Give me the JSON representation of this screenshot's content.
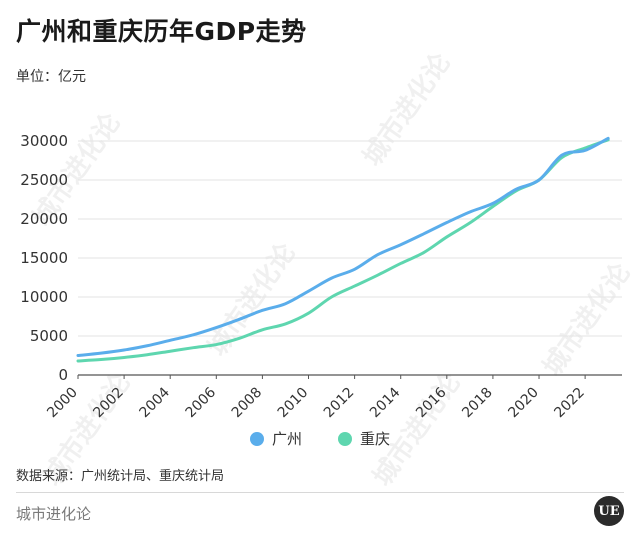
{
  "title": "广州和重庆历年GDP走势",
  "unit_label": "单位：亿元",
  "source": "数据来源：广州统计局、重庆统计局",
  "brand": "城市进化论",
  "logo_text": "UE",
  "watermark_text": "城市进化论",
  "colors": {
    "guangzhou": "#5AADEB",
    "chongqing": "#5ED6AF",
    "grid": "#e3e3e3",
    "axis": "#555555"
  },
  "chart_data": {
    "type": "line",
    "title": "广州和重庆历年GDP走势",
    "ylabel": "单位：亿元",
    "xlabel": "",
    "ylim": [
      0,
      30000
    ],
    "yticks": [
      0,
      5000,
      10000,
      15000,
      20000,
      25000,
      30000
    ],
    "xticks": [
      "2000",
      "2002",
      "2004",
      "2006",
      "2008",
      "2010",
      "2012",
      "2014",
      "2016",
      "2018",
      "2020",
      "2022"
    ],
    "grid": true,
    "legend_position": "bottom",
    "x": [
      2000,
      2001,
      2002,
      2003,
      2004,
      2005,
      2006,
      2007,
      2008,
      2009,
      2010,
      2011,
      2012,
      2013,
      2014,
      2015,
      2016,
      2017,
      2018,
      2019,
      2020,
      2021,
      2022,
      2023
    ],
    "series": [
      {
        "name": "广州",
        "values": [
          2500,
          2800,
          3200,
          3750,
          4450,
          5150,
          6080,
          7140,
          8290,
          9140,
          10750,
          12420,
          13550,
          15420,
          16700,
          18100,
          19550,
          20900,
          22000,
          23800,
          25000,
          28200,
          28800,
          30350
        ]
      },
      {
        "name": "重庆",
        "values": [
          1800,
          1980,
          2250,
          2600,
          3050,
          3500,
          3900,
          4700,
          5800,
          6550,
          7930,
          10000,
          11400,
          12800,
          14300,
          15700,
          17700,
          19500,
          21600,
          23600,
          25000,
          27900,
          29100,
          30150
        ]
      }
    ]
  }
}
